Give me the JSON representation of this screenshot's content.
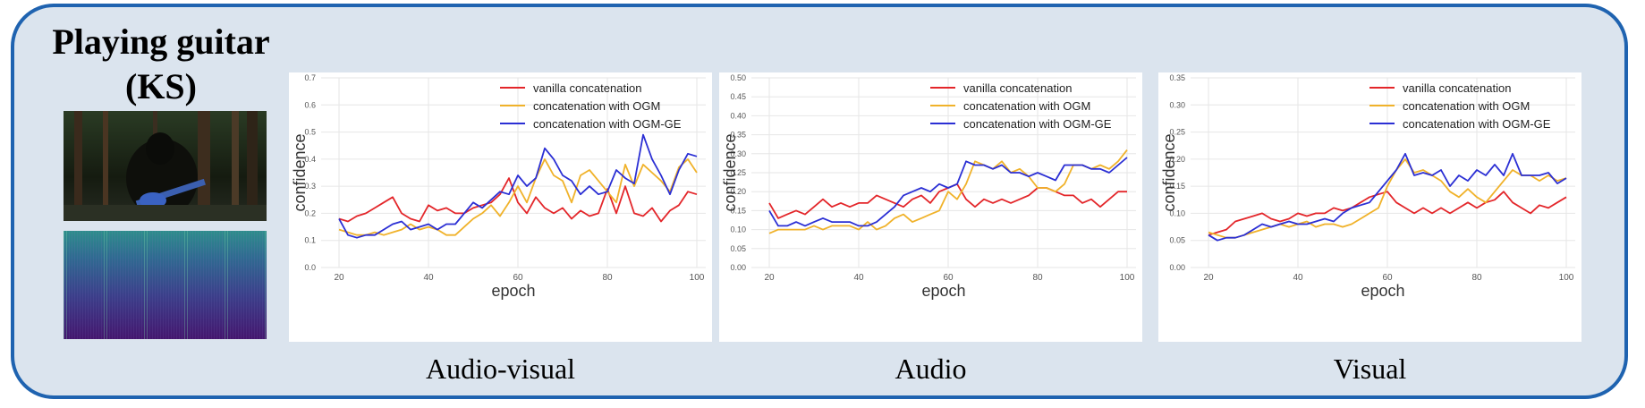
{
  "title_lines": [
    "Playing guitar",
    "(KS)"
  ],
  "captions": [
    "Audio-visual",
    "Audio",
    "Visual"
  ],
  "colors": {
    "frame": "#1f63b0",
    "background": "#dbe4ee",
    "vanilla": "#e3262a",
    "ogm": "#f0b22a",
    "ogm_ge": "#2b2fd4"
  },
  "chart_data": [
    {
      "type": "line",
      "panel": "Audio-visual",
      "xlabel": "epoch",
      "ylabel": "confidence",
      "xlim": [
        16,
        102
      ],
      "ylim": [
        0,
        0.7
      ],
      "xticks": [
        "20",
        "40",
        "60",
        "80",
        "100"
      ],
      "yticks": [
        "0.0",
        "0.1",
        "0.2",
        "0.3",
        "0.4",
        "0.5",
        "0.6",
        "0.7"
      ],
      "grid": true,
      "legend": "top-right",
      "x": [
        20,
        22,
        24,
        26,
        28,
        30,
        32,
        34,
        36,
        38,
        40,
        42,
        44,
        46,
        48,
        50,
        52,
        54,
        56,
        58,
        60,
        62,
        64,
        66,
        68,
        70,
        72,
        74,
        76,
        78,
        80,
        82,
        84,
        86,
        88,
        90,
        92,
        94,
        96,
        98,
        100
      ],
      "series": [
        {
          "name": "vanilla concatenation",
          "values": [
            0.18,
            0.17,
            0.19,
            0.2,
            0.22,
            0.24,
            0.26,
            0.2,
            0.18,
            0.17,
            0.23,
            0.21,
            0.22,
            0.2,
            0.2,
            0.22,
            0.23,
            0.24,
            0.27,
            0.33,
            0.24,
            0.2,
            0.26,
            0.22,
            0.2,
            0.22,
            0.18,
            0.21,
            0.19,
            0.2,
            0.29,
            0.2,
            0.3,
            0.2,
            0.19,
            0.22,
            0.17,
            0.21,
            0.23,
            0.28,
            0.27
          ]
        },
        {
          "name": "concatenation with OGM",
          "values": [
            0.14,
            0.13,
            0.12,
            0.12,
            0.13,
            0.12,
            0.13,
            0.14,
            0.16,
            0.14,
            0.15,
            0.14,
            0.12,
            0.12,
            0.15,
            0.18,
            0.2,
            0.23,
            0.19,
            0.24,
            0.3,
            0.24,
            0.33,
            0.4,
            0.34,
            0.32,
            0.24,
            0.34,
            0.36,
            0.32,
            0.28,
            0.24,
            0.38,
            0.3,
            0.38,
            0.35,
            0.32,
            0.28,
            0.37,
            0.4,
            0.35
          ]
        },
        {
          "name": "concatenation with OGM-GE",
          "values": [
            0.18,
            0.12,
            0.11,
            0.12,
            0.12,
            0.14,
            0.16,
            0.17,
            0.14,
            0.15,
            0.16,
            0.14,
            0.16,
            0.16,
            0.2,
            0.24,
            0.22,
            0.25,
            0.28,
            0.27,
            0.34,
            0.3,
            0.33,
            0.44,
            0.4,
            0.34,
            0.32,
            0.27,
            0.3,
            0.27,
            0.28,
            0.36,
            0.33,
            0.31,
            0.49,
            0.4,
            0.34,
            0.27,
            0.36,
            0.42,
            0.41
          ]
        }
      ]
    },
    {
      "type": "line",
      "panel": "Audio",
      "xlabel": "epoch",
      "ylabel": "confidence",
      "xlim": [
        16,
        102
      ],
      "ylim": [
        0,
        0.5
      ],
      "xticks": [
        "20",
        "40",
        "60",
        "80",
        "100"
      ],
      "yticks": [
        "0.00",
        "0.05",
        "0.10",
        "0.15",
        "0.20",
        "0.25",
        "0.30",
        "0.35",
        "0.40",
        "0.45",
        "0.50"
      ],
      "grid": true,
      "legend": "top-right",
      "x": [
        20,
        22,
        24,
        26,
        28,
        30,
        32,
        34,
        36,
        38,
        40,
        42,
        44,
        46,
        48,
        50,
        52,
        54,
        56,
        58,
        60,
        62,
        64,
        66,
        68,
        70,
        72,
        74,
        76,
        78,
        80,
        82,
        84,
        86,
        88,
        90,
        92,
        94,
        96,
        98,
        100
      ],
      "series": [
        {
          "name": "vanilla concatenation",
          "values": [
            0.17,
            0.13,
            0.14,
            0.15,
            0.14,
            0.16,
            0.18,
            0.16,
            0.17,
            0.16,
            0.17,
            0.17,
            0.19,
            0.18,
            0.17,
            0.16,
            0.18,
            0.19,
            0.17,
            0.2,
            0.21,
            0.22,
            0.18,
            0.16,
            0.18,
            0.17,
            0.18,
            0.17,
            0.18,
            0.19,
            0.21,
            0.21,
            0.2,
            0.19,
            0.19,
            0.17,
            0.18,
            0.16,
            0.18,
            0.2,
            0.2
          ]
        },
        {
          "name": "concatenation with OGM",
          "values": [
            0.09,
            0.1,
            0.1,
            0.1,
            0.1,
            0.11,
            0.1,
            0.11,
            0.11,
            0.11,
            0.1,
            0.12,
            0.1,
            0.11,
            0.13,
            0.14,
            0.12,
            0.13,
            0.14,
            0.15,
            0.2,
            0.18,
            0.22,
            0.28,
            0.27,
            0.26,
            0.28,
            0.25,
            0.26,
            0.24,
            0.21,
            0.21,
            0.2,
            0.22,
            0.27,
            0.27,
            0.26,
            0.27,
            0.26,
            0.28,
            0.31
          ]
        },
        {
          "name": "concatenation with OGM-GE",
          "values": [
            0.15,
            0.11,
            0.11,
            0.12,
            0.11,
            0.12,
            0.13,
            0.12,
            0.12,
            0.12,
            0.11,
            0.11,
            0.12,
            0.14,
            0.16,
            0.19,
            0.2,
            0.21,
            0.2,
            0.22,
            0.21,
            0.22,
            0.28,
            0.27,
            0.27,
            0.26,
            0.27,
            0.25,
            0.25,
            0.24,
            0.25,
            0.24,
            0.23,
            0.27,
            0.27,
            0.27,
            0.26,
            0.26,
            0.25,
            0.27,
            0.29
          ]
        }
      ]
    },
    {
      "type": "line",
      "panel": "Visual",
      "xlabel": "epoch",
      "ylabel": "confidence",
      "xlim": [
        16,
        102
      ],
      "ylim": [
        0,
        0.35
      ],
      "xticks": [
        "20",
        "40",
        "60",
        "80",
        "100"
      ],
      "yticks": [
        "0.00",
        "0.05",
        "0.10",
        "0.15",
        "0.20",
        "0.25",
        "0.30",
        "0.35"
      ],
      "grid": true,
      "legend": "top-right",
      "x": [
        20,
        22,
        24,
        26,
        28,
        30,
        32,
        34,
        36,
        38,
        40,
        42,
        44,
        46,
        48,
        50,
        52,
        54,
        56,
        58,
        60,
        62,
        64,
        66,
        68,
        70,
        72,
        74,
        76,
        78,
        80,
        82,
        84,
        86,
        88,
        90,
        92,
        94,
        96,
        98,
        100
      ],
      "series": [
        {
          "name": "vanilla concatenation",
          "values": [
            0.06,
            0.065,
            0.07,
            0.085,
            0.09,
            0.095,
            0.1,
            0.09,
            0.085,
            0.09,
            0.1,
            0.095,
            0.1,
            0.1,
            0.11,
            0.105,
            0.11,
            0.12,
            0.13,
            0.135,
            0.14,
            0.12,
            0.11,
            0.1,
            0.11,
            0.1,
            0.11,
            0.1,
            0.11,
            0.12,
            0.11,
            0.12,
            0.125,
            0.14,
            0.12,
            0.11,
            0.1,
            0.115,
            0.11,
            0.12,
            0.13
          ]
        },
        {
          "name": "concatenation with OGM",
          "values": [
            0.065,
            0.06,
            0.055,
            0.055,
            0.06,
            0.065,
            0.07,
            0.075,
            0.08,
            0.075,
            0.08,
            0.085,
            0.075,
            0.08,
            0.08,
            0.075,
            0.08,
            0.09,
            0.1,
            0.11,
            0.15,
            0.18,
            0.2,
            0.175,
            0.18,
            0.17,
            0.16,
            0.14,
            0.13,
            0.145,
            0.13,
            0.12,
            0.14,
            0.16,
            0.18,
            0.17,
            0.17,
            0.16,
            0.17,
            0.16,
            0.165
          ]
        },
        {
          "name": "concatenation with OGM-GE",
          "values": [
            0.06,
            0.05,
            0.055,
            0.055,
            0.06,
            0.07,
            0.08,
            0.075,
            0.08,
            0.085,
            0.08,
            0.08,
            0.085,
            0.09,
            0.085,
            0.1,
            0.11,
            0.115,
            0.12,
            0.14,
            0.16,
            0.18,
            0.21,
            0.17,
            0.175,
            0.17,
            0.18,
            0.15,
            0.17,
            0.16,
            0.18,
            0.17,
            0.19,
            0.17,
            0.21,
            0.17,
            0.17,
            0.17,
            0.175,
            0.155,
            0.165
          ]
        }
      ]
    }
  ]
}
